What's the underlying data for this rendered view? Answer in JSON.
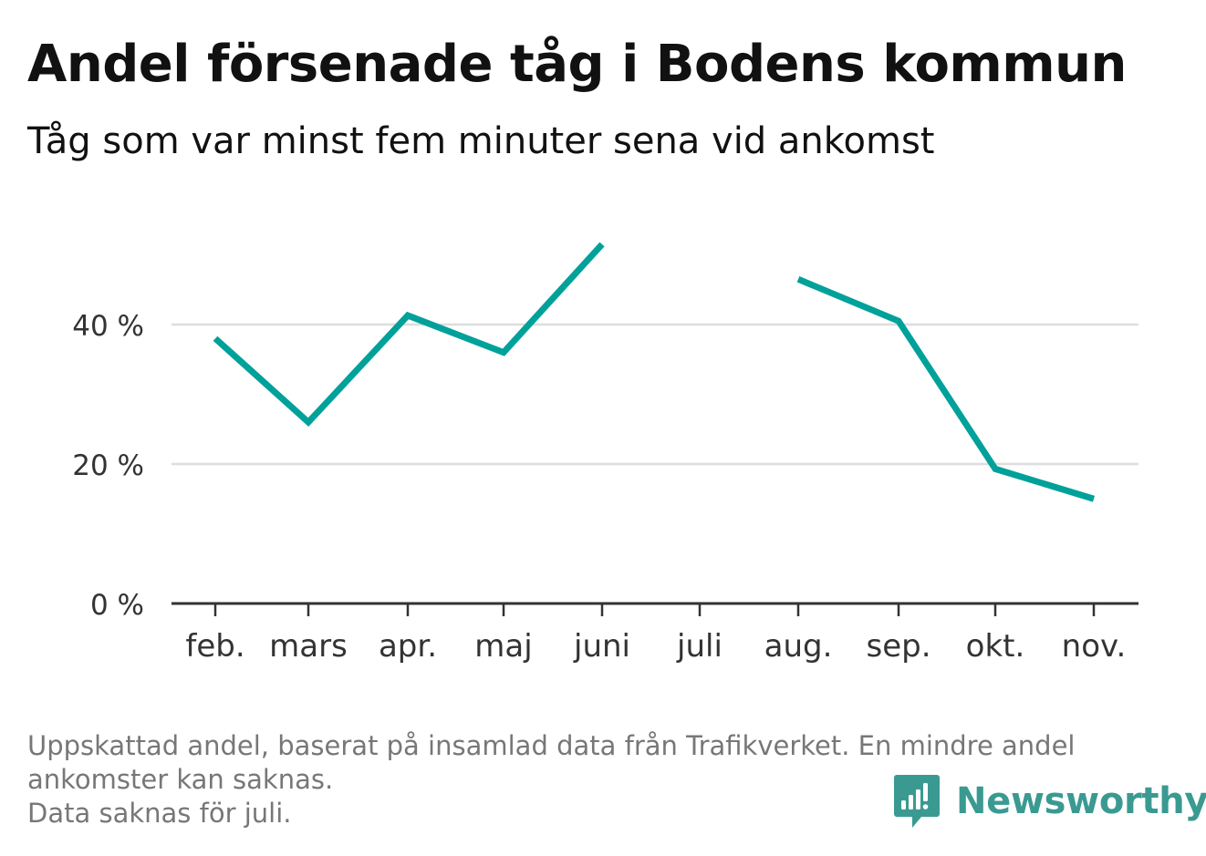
{
  "header": {
    "title": "Andel försenade tåg i Bodens kommun",
    "subtitle": "Tåg som var minst fem minuter sena vid ankomst"
  },
  "chart_data": {
    "type": "line",
    "categories": [
      "feb.",
      "mars",
      "apr.",
      "maj",
      "juni",
      "juli",
      "aug.",
      "sep.",
      "okt.",
      "nov."
    ],
    "series": [
      {
        "values": [
          38,
          26,
          41.3,
          36,
          51.5,
          null,
          46.5,
          40.5,
          19.3,
          15
        ]
      }
    ],
    "yticks": [
      0,
      20,
      40
    ],
    "ytick_labels": [
      "0 %",
      "20 %",
      "40 %"
    ],
    "ylim": [
      0,
      55
    ],
    "grid": true,
    "line_color": "#00a19a",
    "title": "Andel försenade tåg i Bodens kommun",
    "subtitle": "Tåg som var minst fem minuter sena vid ankomst"
  },
  "footnote": {
    "line1": "Uppskattad andel, baserat på insamlad data från Trafikverket. En mindre andel",
    "line2": "ankomster kan saknas.",
    "line3": "Data saknas för juli."
  },
  "logo": {
    "text": "Newsworthy",
    "icon": "newsworthy-logo-icon",
    "color": "#3a9a92"
  }
}
